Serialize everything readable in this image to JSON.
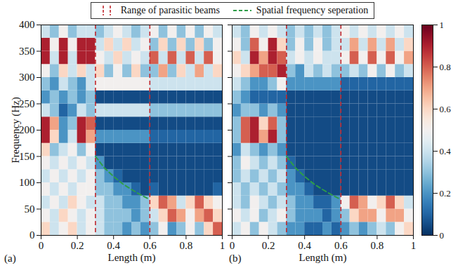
{
  "annotations": [
    {
      "type": "vlines",
      "label": "Range of parasitic beams",
      "color": "#c1272d",
      "x": [
        0.3,
        0.6
      ]
    },
    {
      "type": "curve",
      "label": "Spatial frequency seperation",
      "color": "#2e9e48",
      "points": [
        [
          0.3,
          150
        ],
        [
          0.35,
          128
        ],
        [
          0.4,
          112
        ],
        [
          0.45,
          98
        ],
        [
          0.5,
          87
        ],
        [
          0.55,
          77
        ],
        [
          0.6,
          68
        ]
      ]
    }
  ],
  "colorbar": {
    "range": [
      0,
      1
    ],
    "ticks": [
      0,
      0.2,
      0.4,
      0.6,
      0.8,
      1
    ]
  },
  "chart_data": [
    {
      "type": "heatmap",
      "panel": "(a)",
      "xlabel": "Length (m)",
      "ylabel": "Frequency (Hz)",
      "xlim": [
        0,
        1
      ],
      "ylim": [
        0,
        400
      ],
      "xticks": [
        0,
        0.2,
        0.4,
        0.6,
        0.8,
        1
      ],
      "yticks": [
        0,
        50,
        100,
        150,
        200,
        250,
        300,
        350,
        400
      ],
      "cells": {
        "x_bins": [
          0,
          0.05,
          0.1,
          0.15,
          0.2,
          0.25,
          0.3,
          0.35,
          0.4,
          0.45,
          0.5,
          0.55,
          0.6,
          0.65,
          0.7,
          0.75,
          0.8,
          0.85,
          0.9,
          0.95,
          1
        ],
        "y_bins": [
          0,
          25,
          50,
          75,
          100,
          125,
          150,
          175,
          200,
          225,
          250,
          275,
          300,
          325,
          350,
          375,
          400
        ],
        "values": [
          [
            0.6,
            0.4,
            0.5,
            0.6,
            0.4,
            0.5,
            0.4,
            0.3,
            0.3,
            0.2,
            0.3,
            0.2,
            0.3,
            0.5,
            0.2,
            0.3,
            0.5,
            0.3,
            0.6,
            0.8
          ],
          [
            0.5,
            0.4,
            0.6,
            0.5,
            0.4,
            0.5,
            0.4,
            0.3,
            0.3,
            0.3,
            0.2,
            0.3,
            0.4,
            0.6,
            0.8,
            0.7,
            0.5,
            0.7,
            0.8,
            0.6
          ],
          [
            0.4,
            0.5,
            0.4,
            0.6,
            0.5,
            0.4,
            0.4,
            0.3,
            0.3,
            0.2,
            0.2,
            0.3,
            0.6,
            0.8,
            0.7,
            0.4,
            0.6,
            0.8,
            0.6,
            0.5
          ],
          [
            0.5,
            0.4,
            0.5,
            0.4,
            0.5,
            0.5,
            0.3,
            0.3,
            0.2,
            0.2,
            0.1,
            0.05,
            0.1,
            0.05,
            0.05,
            0.05,
            0.05,
            0.05,
            0.05,
            0.1
          ],
          [
            0.4,
            0.5,
            0.4,
            0.5,
            0.4,
            0.5,
            0.3,
            0.2,
            0.1,
            0.05,
            0.05,
            0.05,
            0.05,
            0.05,
            0.05,
            0.05,
            0.05,
            0.05,
            0.05,
            0.05
          ],
          [
            0.5,
            0.4,
            0.5,
            0.4,
            0.5,
            0.4,
            0.2,
            0.05,
            0.05,
            0.05,
            0.05,
            0.05,
            0.05,
            0.05,
            0.05,
            0.05,
            0.05,
            0.05,
            0.05,
            0.05
          ],
          [
            0.6,
            0.3,
            0.4,
            0.5,
            0.3,
            0.5,
            0.05,
            0.05,
            0.05,
            0.05,
            0.05,
            0.05,
            0.05,
            0.05,
            0.05,
            0.05,
            0.05,
            0.05,
            0.05,
            0.05
          ],
          [
            0.9,
            0.6,
            0.2,
            0.4,
            0.9,
            0.7,
            0.2,
            0.2,
            0.2,
            0.2,
            0.2,
            0.2,
            0.1,
            0.1,
            0.1,
            0.1,
            0.1,
            0.1,
            0.1,
            0.1
          ],
          [
            0.9,
            0.7,
            0.2,
            0.3,
            0.9,
            0.8,
            0.05,
            0.05,
            0.05,
            0.05,
            0.05,
            0.05,
            0.05,
            0.05,
            0.05,
            0.05,
            0.05,
            0.05,
            0.05,
            0.05
          ],
          [
            0.4,
            0.3,
            0.1,
            0.2,
            0.4,
            0.3,
            0.4,
            0.4,
            0.4,
            0.4,
            0.4,
            0.4,
            0.3,
            0.3,
            0.3,
            0.3,
            0.3,
            0.3,
            0.3,
            0.3
          ],
          [
            0.2,
            0.3,
            0.2,
            0.3,
            0.2,
            0.3,
            0.05,
            0.05,
            0.05,
            0.05,
            0.05,
            0.05,
            0.05,
            0.05,
            0.05,
            0.05,
            0.05,
            0.05,
            0.05,
            0.05
          ],
          [
            0.3,
            0.2,
            0.4,
            0.3,
            0.2,
            0.4,
            0.5,
            0.5,
            0.5,
            0.5,
            0.5,
            0.5,
            0.4,
            0.4,
            0.4,
            0.4,
            0.4,
            0.4,
            0.4,
            0.4
          ],
          [
            0.5,
            0.3,
            0.6,
            0.4,
            0.6,
            0.4,
            0.6,
            0.3,
            0.5,
            0.3,
            0.6,
            0.3,
            0.3,
            0.7,
            0.3,
            0.6,
            0.4,
            0.7,
            0.4,
            0.6
          ],
          [
            0.9,
            0.4,
            0.9,
            0.4,
            0.9,
            0.9,
            0.5,
            0.4,
            0.6,
            0.4,
            0.5,
            0.4,
            0.8,
            0.4,
            0.8,
            0.4,
            0.8,
            0.4,
            0.8,
            0.5
          ],
          [
            0.9,
            0.5,
            0.9,
            0.5,
            0.9,
            0.9,
            0.4,
            0.6,
            0.4,
            0.6,
            0.4,
            0.5,
            0.3,
            0.6,
            0.3,
            0.6,
            0.3,
            0.6,
            0.3,
            0.5
          ],
          [
            0.4,
            0.3,
            0.5,
            0.3,
            0.4,
            0.4,
            0.3,
            0.4,
            0.5,
            0.4,
            0.3,
            0.4,
            0.5,
            0.3,
            0.5,
            0.3,
            0.5,
            0.3,
            0.5,
            0.4
          ]
        ]
      }
    },
    {
      "type": "heatmap",
      "panel": "(b)",
      "xlabel": "Length (m)",
      "tick_labels": "x",
      "xlim": [
        0,
        1
      ],
      "ylim": [
        0,
        400
      ],
      "xticks": [
        0,
        0.2,
        0.4,
        0.6,
        0.8,
        1
      ],
      "yticks": [
        0,
        50,
        100,
        150,
        200,
        250,
        300,
        350,
        400
      ],
      "cells": {
        "x_bins": [
          0,
          0.05,
          0.1,
          0.15,
          0.2,
          0.25,
          0.3,
          0.35,
          0.4,
          0.45,
          0.5,
          0.55,
          0.6,
          0.65,
          0.7,
          0.75,
          0.8,
          0.85,
          0.9,
          0.95,
          1
        ],
        "y_bins": [
          0,
          25,
          50,
          75,
          100,
          125,
          150,
          175,
          200,
          225,
          250,
          275,
          300,
          325,
          350,
          375,
          400
        ],
        "values": [
          [
            0.4,
            0.5,
            0.3,
            0.5,
            0.4,
            0.3,
            0.2,
            0.2,
            0.1,
            0.1,
            0.2,
            0.1,
            0.2,
            0.3,
            0.2,
            0.3,
            0.4,
            0.3,
            0.5,
            0.6
          ],
          [
            0.5,
            0.4,
            0.5,
            0.3,
            0.4,
            0.5,
            0.3,
            0.2,
            0.2,
            0.2,
            0.1,
            0.2,
            0.3,
            0.6,
            0.7,
            0.7,
            0.5,
            0.7,
            0.7,
            0.5
          ],
          [
            0.4,
            0.3,
            0.5,
            0.4,
            0.3,
            0.4,
            0.3,
            0.2,
            0.2,
            0.1,
            0.1,
            0.2,
            0.5,
            0.8,
            0.7,
            0.5,
            0.6,
            0.8,
            0.6,
            0.4
          ],
          [
            0.4,
            0.3,
            0.4,
            0.3,
            0.4,
            0.3,
            0.2,
            0.2,
            0.1,
            0.05,
            0.05,
            0.05,
            0.05,
            0.05,
            0.05,
            0.05,
            0.05,
            0.05,
            0.05,
            0.05
          ],
          [
            0.3,
            0.4,
            0.3,
            0.4,
            0.3,
            0.4,
            0.2,
            0.1,
            0.05,
            0.05,
            0.05,
            0.05,
            0.05,
            0.05,
            0.05,
            0.05,
            0.05,
            0.05,
            0.05,
            0.05
          ],
          [
            0.3,
            0.5,
            0.4,
            0.3,
            0.4,
            0.3,
            0.1,
            0.05,
            0.05,
            0.05,
            0.05,
            0.05,
            0.05,
            0.05,
            0.05,
            0.05,
            0.05,
            0.05,
            0.05,
            0.05
          ],
          [
            0.2,
            0.4,
            0.3,
            0.2,
            0.3,
            0.2,
            0.05,
            0.05,
            0.05,
            0.05,
            0.05,
            0.05,
            0.05,
            0.05,
            0.05,
            0.05,
            0.05,
            0.05,
            0.05,
            0.05
          ],
          [
            0.3,
            0.8,
            0.9,
            0.7,
            0.9,
            0.3,
            0.05,
            0.05,
            0.05,
            0.05,
            0.05,
            0.05,
            0.05,
            0.05,
            0.05,
            0.05,
            0.05,
            0.05,
            0.05,
            0.05
          ],
          [
            0.3,
            0.8,
            0.9,
            0.6,
            0.8,
            0.3,
            0.05,
            0.05,
            0.05,
            0.05,
            0.05,
            0.05,
            0.05,
            0.05,
            0.05,
            0.05,
            0.05,
            0.05,
            0.05,
            0.05
          ],
          [
            0.2,
            0.3,
            0.3,
            0.2,
            0.3,
            0.2,
            0.05,
            0.05,
            0.05,
            0.05,
            0.05,
            0.05,
            0.05,
            0.05,
            0.05,
            0.05,
            0.05,
            0.05,
            0.05,
            0.05
          ],
          [
            0.3,
            0.2,
            0.1,
            0.1,
            0.1,
            0.1,
            0.05,
            0.05,
            0.05,
            0.05,
            0.05,
            0.05,
            0.05,
            0.05,
            0.05,
            0.05,
            0.05,
            0.05,
            0.05,
            0.05
          ],
          [
            0.4,
            0.3,
            0.2,
            0.2,
            0.3,
            0.5,
            0.2,
            0.2,
            0.2,
            0.2,
            0.2,
            0.2,
            0.1,
            0.1,
            0.1,
            0.1,
            0.1,
            0.1,
            0.1,
            0.1
          ],
          [
            0.5,
            0.6,
            0.7,
            0.8,
            0.8,
            0.9,
            0.3,
            0.2,
            0.4,
            0.3,
            0.4,
            0.3,
            0.3,
            0.4,
            0.3,
            0.5,
            0.3,
            0.5,
            0.3,
            0.4
          ],
          [
            0.6,
            0.4,
            0.9,
            0.7,
            0.9,
            0.8,
            0.4,
            0.5,
            0.4,
            0.5,
            0.4,
            0.4,
            0.5,
            0.8,
            0.5,
            0.8,
            0.5,
            0.8,
            0.5,
            0.7
          ],
          [
            0.5,
            0.3,
            0.8,
            0.5,
            0.9,
            0.6,
            0.3,
            0.5,
            0.3,
            0.5,
            0.3,
            0.4,
            0.4,
            0.7,
            0.4,
            0.7,
            0.4,
            0.7,
            0.4,
            0.6
          ],
          [
            0.4,
            0.3,
            0.5,
            0.4,
            0.5,
            0.4,
            0.3,
            0.4,
            0.3,
            0.4,
            0.3,
            0.4,
            0.5,
            0.4,
            0.5,
            0.4,
            0.5,
            0.4,
            0.5,
            0.4
          ]
        ]
      }
    }
  ]
}
